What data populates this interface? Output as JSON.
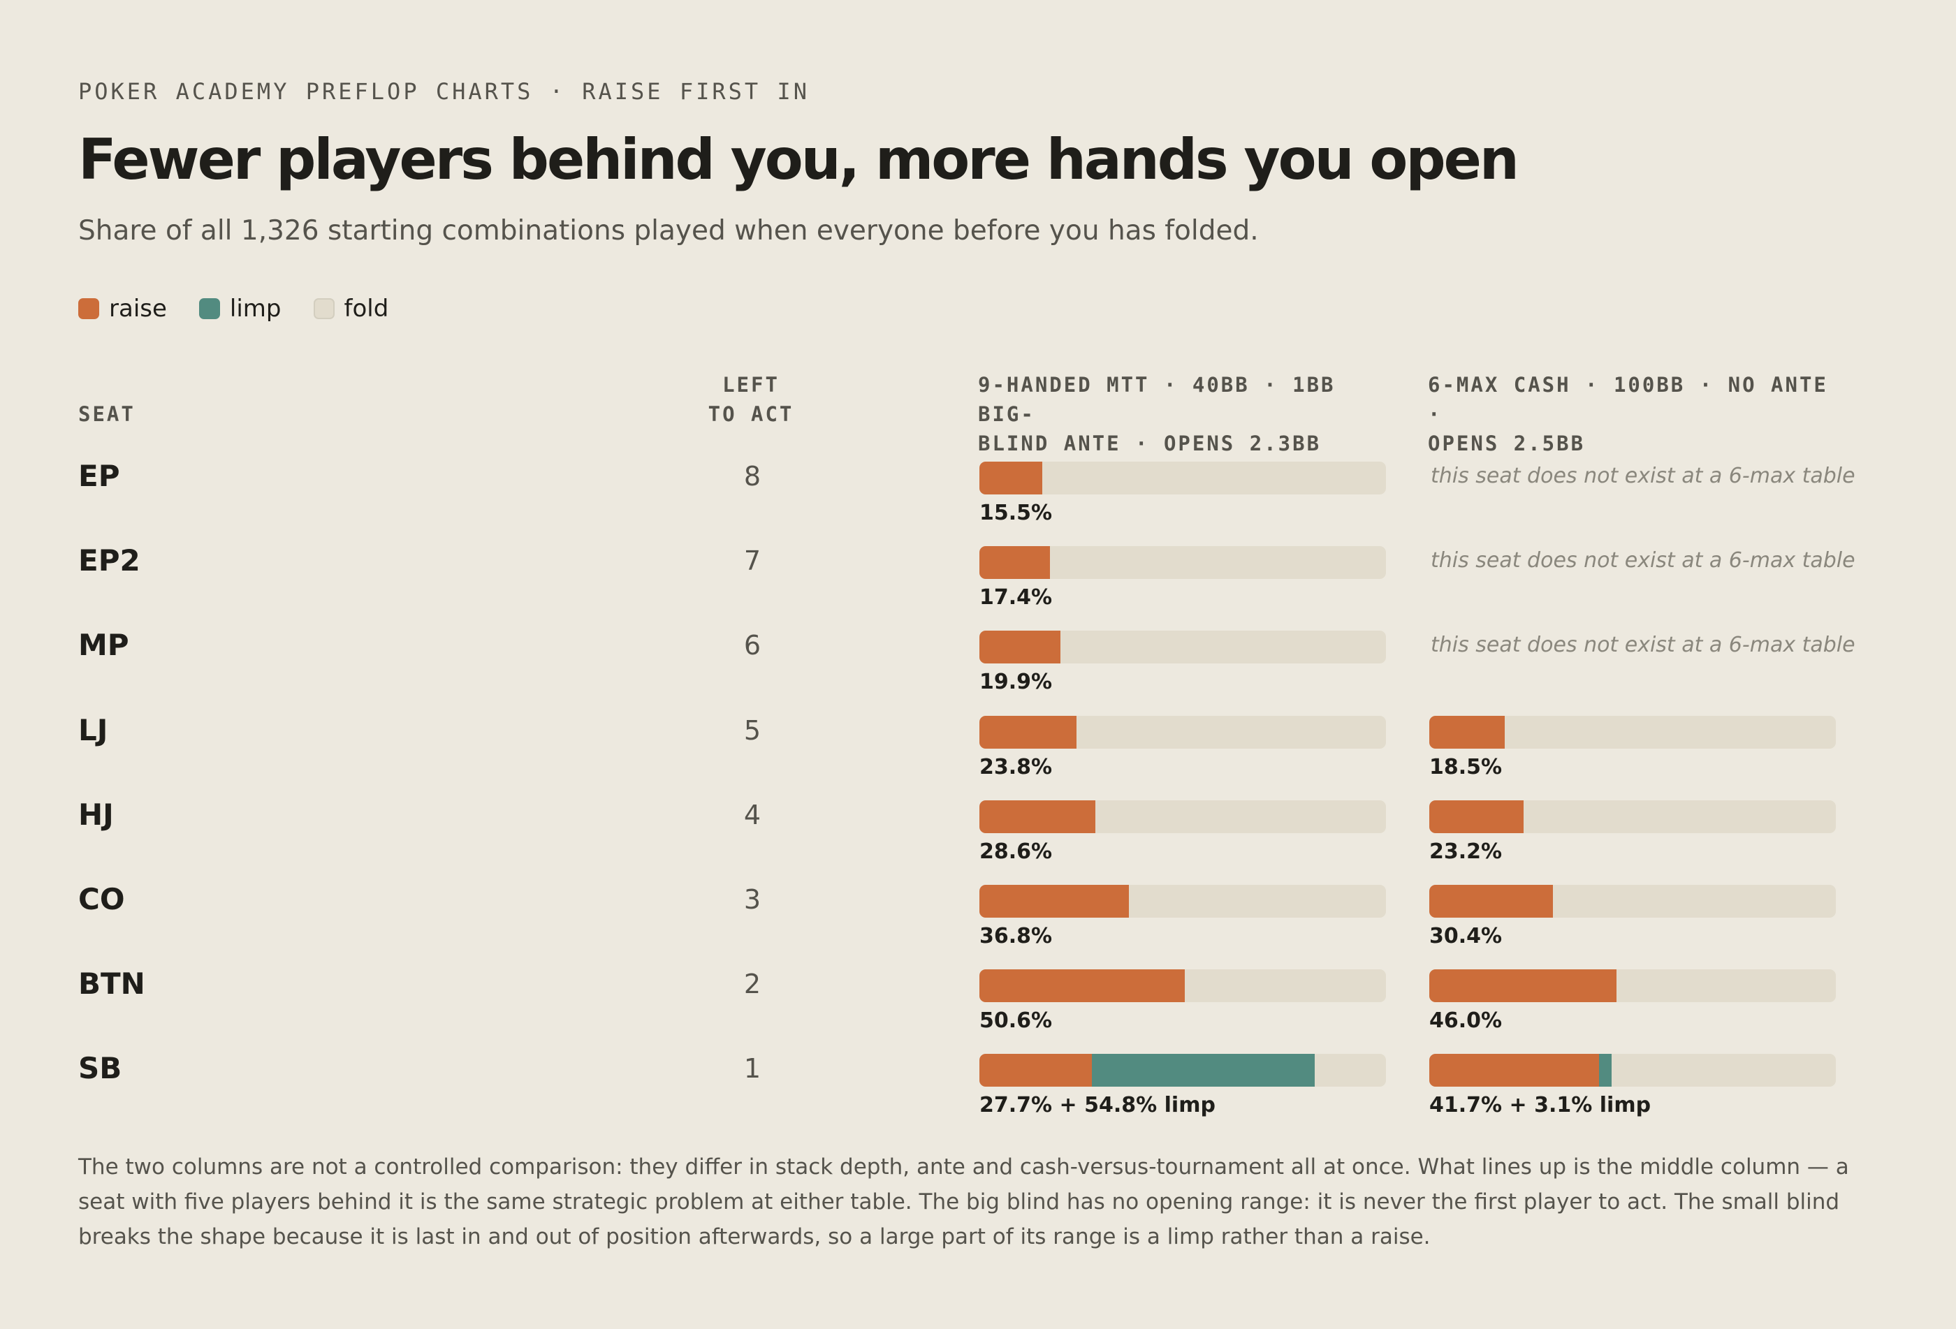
{
  "eyebrow": "POKER ACADEMY PREFLOP CHARTS · RAISE FIRST IN",
  "title": "Fewer players behind you, more hands you open",
  "subtitle": "Share of all 1,326 starting combinations played when everyone before you has folded.",
  "legend": [
    {
      "label": "raise",
      "color": "#cc6d3a"
    },
    {
      "label": "limp",
      "color": "#528b80"
    },
    {
      "label": "fold",
      "color": "#e2dccd"
    }
  ],
  "columns": {
    "seat": "SEAT",
    "left_to_act_line1": "LEFT",
    "left_to_act_line2": "TO ACT",
    "mtt_line1": "9-HANDED MTT · 40BB · 1BB BIG-",
    "mtt_line2": "BLIND ANTE · OPENS 2.3BB",
    "cash_line1": "6-MAX CASH · 100BB · NO ANTE ·",
    "cash_line2": "OPENS 2.5BB"
  },
  "missing_seat_note": "this seat does not exist at a 6-max table",
  "chart_data": {
    "type": "bar",
    "orientation": "horizontal-stacked",
    "unit": "percent of 1,326 combinations",
    "xlim": [
      0,
      100
    ],
    "categories": [
      "EP",
      "EP2",
      "MP",
      "LJ",
      "HJ",
      "CO",
      "BTN",
      "SB"
    ],
    "left_to_act": [
      "8",
      "7",
      "6",
      "5",
      "4",
      "3",
      "2",
      "1"
    ],
    "series": [
      {
        "name": "9-HANDED MTT · 40BB · 1BB BIG-BLIND ANTE · OPENS 2.3BB",
        "raise": [
          15.5,
          17.4,
          19.9,
          23.8,
          28.6,
          36.8,
          50.6,
          27.7
        ],
        "limp": [
          0,
          0,
          0,
          0,
          0,
          0,
          0,
          54.8
        ],
        "labels": [
          "15.5%",
          "17.4%",
          "19.9%",
          "23.8%",
          "28.6%",
          "36.8%",
          "50.6%",
          "27.7% + 54.8% limp"
        ]
      },
      {
        "name": "6-MAX CASH · 100BB · NO ANTE · OPENS 2.5BB",
        "raise": [
          null,
          null,
          null,
          18.5,
          23.2,
          30.4,
          46.0,
          41.7
        ],
        "limp": [
          null,
          null,
          null,
          0,
          0,
          0,
          0,
          3.1
        ],
        "labels": [
          null,
          null,
          null,
          "18.5%",
          "23.2%",
          "30.4%",
          "46.0%",
          "41.7% + 3.1% limp"
        ]
      }
    ]
  },
  "footnote": "The two columns are not a controlled comparison: they differ in stack depth, ante and cash-versus-tournament all at once. What lines up is the middle column — a seat with five players behind it is the same strategic problem at either table. The big blind has no opening range: it is never the first player to act. The small blind breaks the shape because it is last in and out of position afterwards, so a large part of its range is a limp rather than a raise."
}
